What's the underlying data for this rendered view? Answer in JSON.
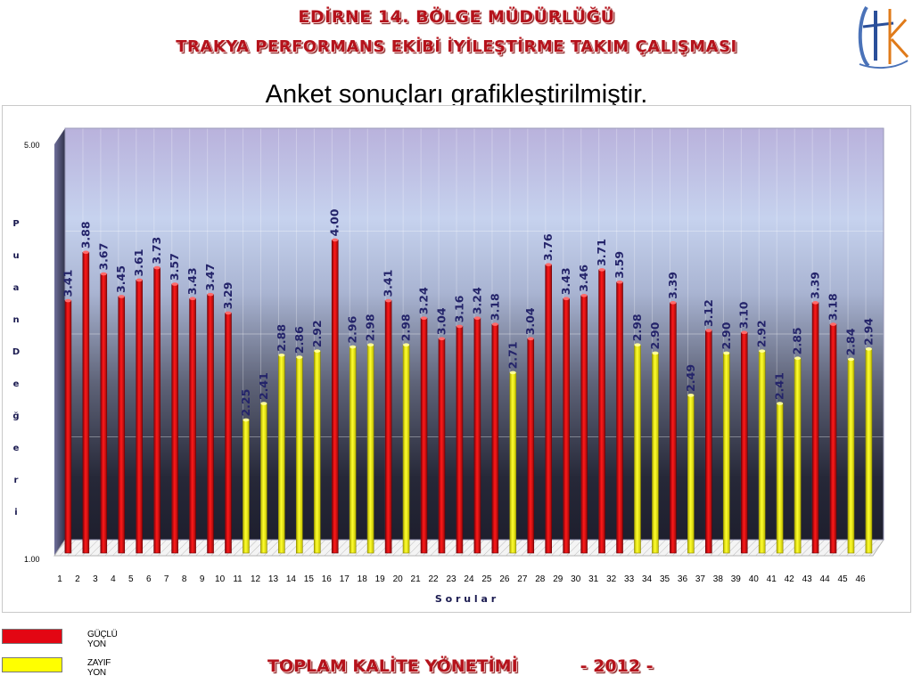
{
  "header": {
    "line1": "EDİRNE 14. BÖLGE MÜDÜRLÜĞÜ",
    "line2": "TRAKYA PERFORMANS EKİBİ İYİLEŞTİRME TAKIM ÇALIŞMASI",
    "subtitle": "Anket sonuçları grafikleştirilmiştir.",
    "logo_icon": "tk-logo-icon"
  },
  "colors": {
    "strong": "#e30613",
    "weak": "#ffff00",
    "header_red": "#b5121b"
  },
  "chart_data": {
    "type": "bar",
    "title": "",
    "xlabel": "S o r u l a r",
    "ylabel": "P u a n   D e ğ e r i",
    "ylim": [
      1.0,
      5.0
    ],
    "ytick_labels": [
      "5.00",
      "1.00"
    ],
    "grid": true,
    "categories": [
      "1",
      "2",
      "3",
      "4",
      "5",
      "6",
      "7",
      "8",
      "9",
      "10",
      "11",
      "12",
      "13",
      "14",
      "15",
      "16",
      "17",
      "18",
      "19",
      "20",
      "21",
      "22",
      "23",
      "24",
      "25",
      "26",
      "27",
      "28",
      "29",
      "30",
      "31",
      "32",
      "33",
      "34",
      "35",
      "36",
      "37",
      "38",
      "39",
      "40",
      "41",
      "42",
      "43",
      "44",
      "45",
      "46"
    ],
    "values": [
      3.41,
      3.88,
      3.67,
      3.45,
      3.61,
      3.73,
      3.57,
      3.43,
      3.47,
      3.29,
      2.25,
      2.41,
      2.88,
      2.86,
      2.92,
      4.0,
      2.96,
      2.98,
      3.41,
      2.98,
      3.24,
      3.04,
      3.16,
      3.24,
      3.18,
      2.71,
      3.04,
      3.76,
      3.43,
      3.46,
      3.71,
      3.59,
      2.98,
      2.9,
      3.39,
      2.49,
      3.12,
      2.9,
      3.1,
      2.92,
      2.41,
      2.85,
      3.39,
      3.18,
      2.84,
      2.94
    ],
    "value_labels": [
      "3.41",
      "3.88",
      "3.67",
      "3.45",
      "3.61",
      "3.73",
      "3.57",
      "3.43",
      "3.47",
      "3.29",
      "2.25",
      "2.41",
      "2.88",
      "2.86",
      "2.92",
      "4.00",
      "2.96",
      "2.98",
      "3.41",
      "2.98",
      "3.24",
      "3.04",
      "3.16",
      "3.24",
      "3.18",
      "2.71",
      "3.04",
      "3.76",
      "3.43",
      "3.46",
      "3.71",
      "3.59",
      "2.98",
      "2.90",
      "3.39",
      "2.49",
      "3.12",
      "2.90",
      "3.10",
      "2.92",
      "2.41",
      "2.85",
      "3.39",
      "3.18",
      "2.84",
      "2.94"
    ],
    "groups": [
      "strong",
      "strong",
      "strong",
      "strong",
      "strong",
      "strong",
      "strong",
      "strong",
      "strong",
      "strong",
      "weak",
      "weak",
      "weak",
      "weak",
      "weak",
      "strong",
      "weak",
      "weak",
      "strong",
      "weak",
      "strong",
      "strong",
      "strong",
      "strong",
      "strong",
      "weak",
      "strong",
      "strong",
      "strong",
      "strong",
      "strong",
      "strong",
      "weak",
      "weak",
      "strong",
      "weak",
      "strong",
      "weak",
      "strong",
      "weak",
      "weak",
      "weak",
      "strong",
      "strong",
      "weak",
      "weak"
    ],
    "legend": [
      {
        "key": "strong",
        "label": "GÜÇLÜ YON",
        "color": "#e30613"
      },
      {
        "key": "weak",
        "label": "ZAYIF YON",
        "color": "#ffff00"
      }
    ],
    "legend_position": "bottom-left"
  },
  "footer": {
    "left": "TOPLAM KALİTE YÖNETİMİ",
    "right": "- 2012 -"
  }
}
